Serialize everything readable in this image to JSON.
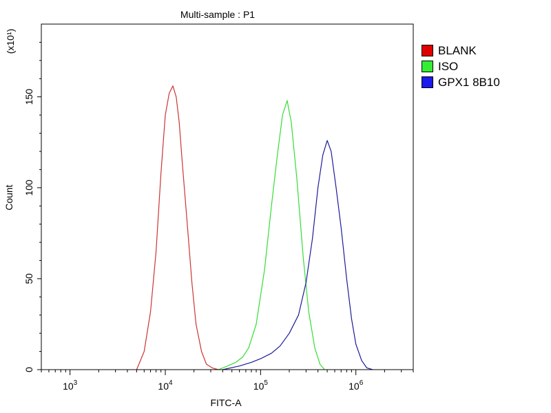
{
  "chart_data": {
    "type": "line",
    "title": "Multi-sample : P1",
    "xlabel": "FITC-A",
    "ylabel": "Count",
    "y_multiplier_label": "(x10¹)",
    "x_scale": "log",
    "xlim": [
      500,
      4000000
    ],
    "ylim": [
      0,
      190
    ],
    "x_ticks": [
      {
        "value": 1000,
        "base": "10",
        "exp": "3"
      },
      {
        "value": 10000,
        "base": "10",
        "exp": "4"
      },
      {
        "value": 100000,
        "base": "10",
        "exp": "5"
      },
      {
        "value": 1000000,
        "base": "10",
        "exp": "6"
      }
    ],
    "y_ticks": [
      0,
      50,
      100,
      150
    ],
    "legend_position": "right",
    "series": [
      {
        "name": "BLANK",
        "color": "#cc3333",
        "x": [
          5000,
          6000,
          7000,
          8000,
          9000,
          10000,
          11000,
          12000,
          13000,
          14000,
          15000,
          17000,
          19000,
          21000,
          24000,
          27000,
          31000,
          36000
        ],
        "y": [
          0,
          10,
          32,
          65,
          108,
          140,
          152,
          156,
          150,
          136,
          115,
          80,
          48,
          25,
          10,
          3,
          1,
          0
        ]
      },
      {
        "name": "ISO",
        "color": "#33dd33",
        "x": [
          36000,
          45000,
          55000,
          65000,
          75000,
          90000,
          110000,
          130000,
          150000,
          170000,
          190000,
          210000,
          240000,
          280000,
          320000,
          370000,
          420000,
          470000
        ],
        "y": [
          0,
          2,
          4,
          7,
          12,
          25,
          55,
          90,
          118,
          140,
          148,
          136,
          105,
          62,
          32,
          12,
          3,
          0
        ]
      },
      {
        "name": "GPX1 8B10",
        "color": "#1a1a99",
        "x": [
          40000,
          60000,
          80000,
          100000,
          130000,
          160000,
          200000,
          250000,
          300000,
          350000,
          400000,
          450000,
          500000,
          550000,
          620000,
          700000,
          800000,
          900000,
          1000000,
          1150000,
          1300000,
          1500000
        ],
        "y": [
          0,
          2,
          4,
          6,
          9,
          13,
          20,
          30,
          48,
          72,
          100,
          118,
          126,
          120,
          100,
          78,
          50,
          28,
          14,
          5,
          1,
          0
        ]
      }
    ]
  }
}
